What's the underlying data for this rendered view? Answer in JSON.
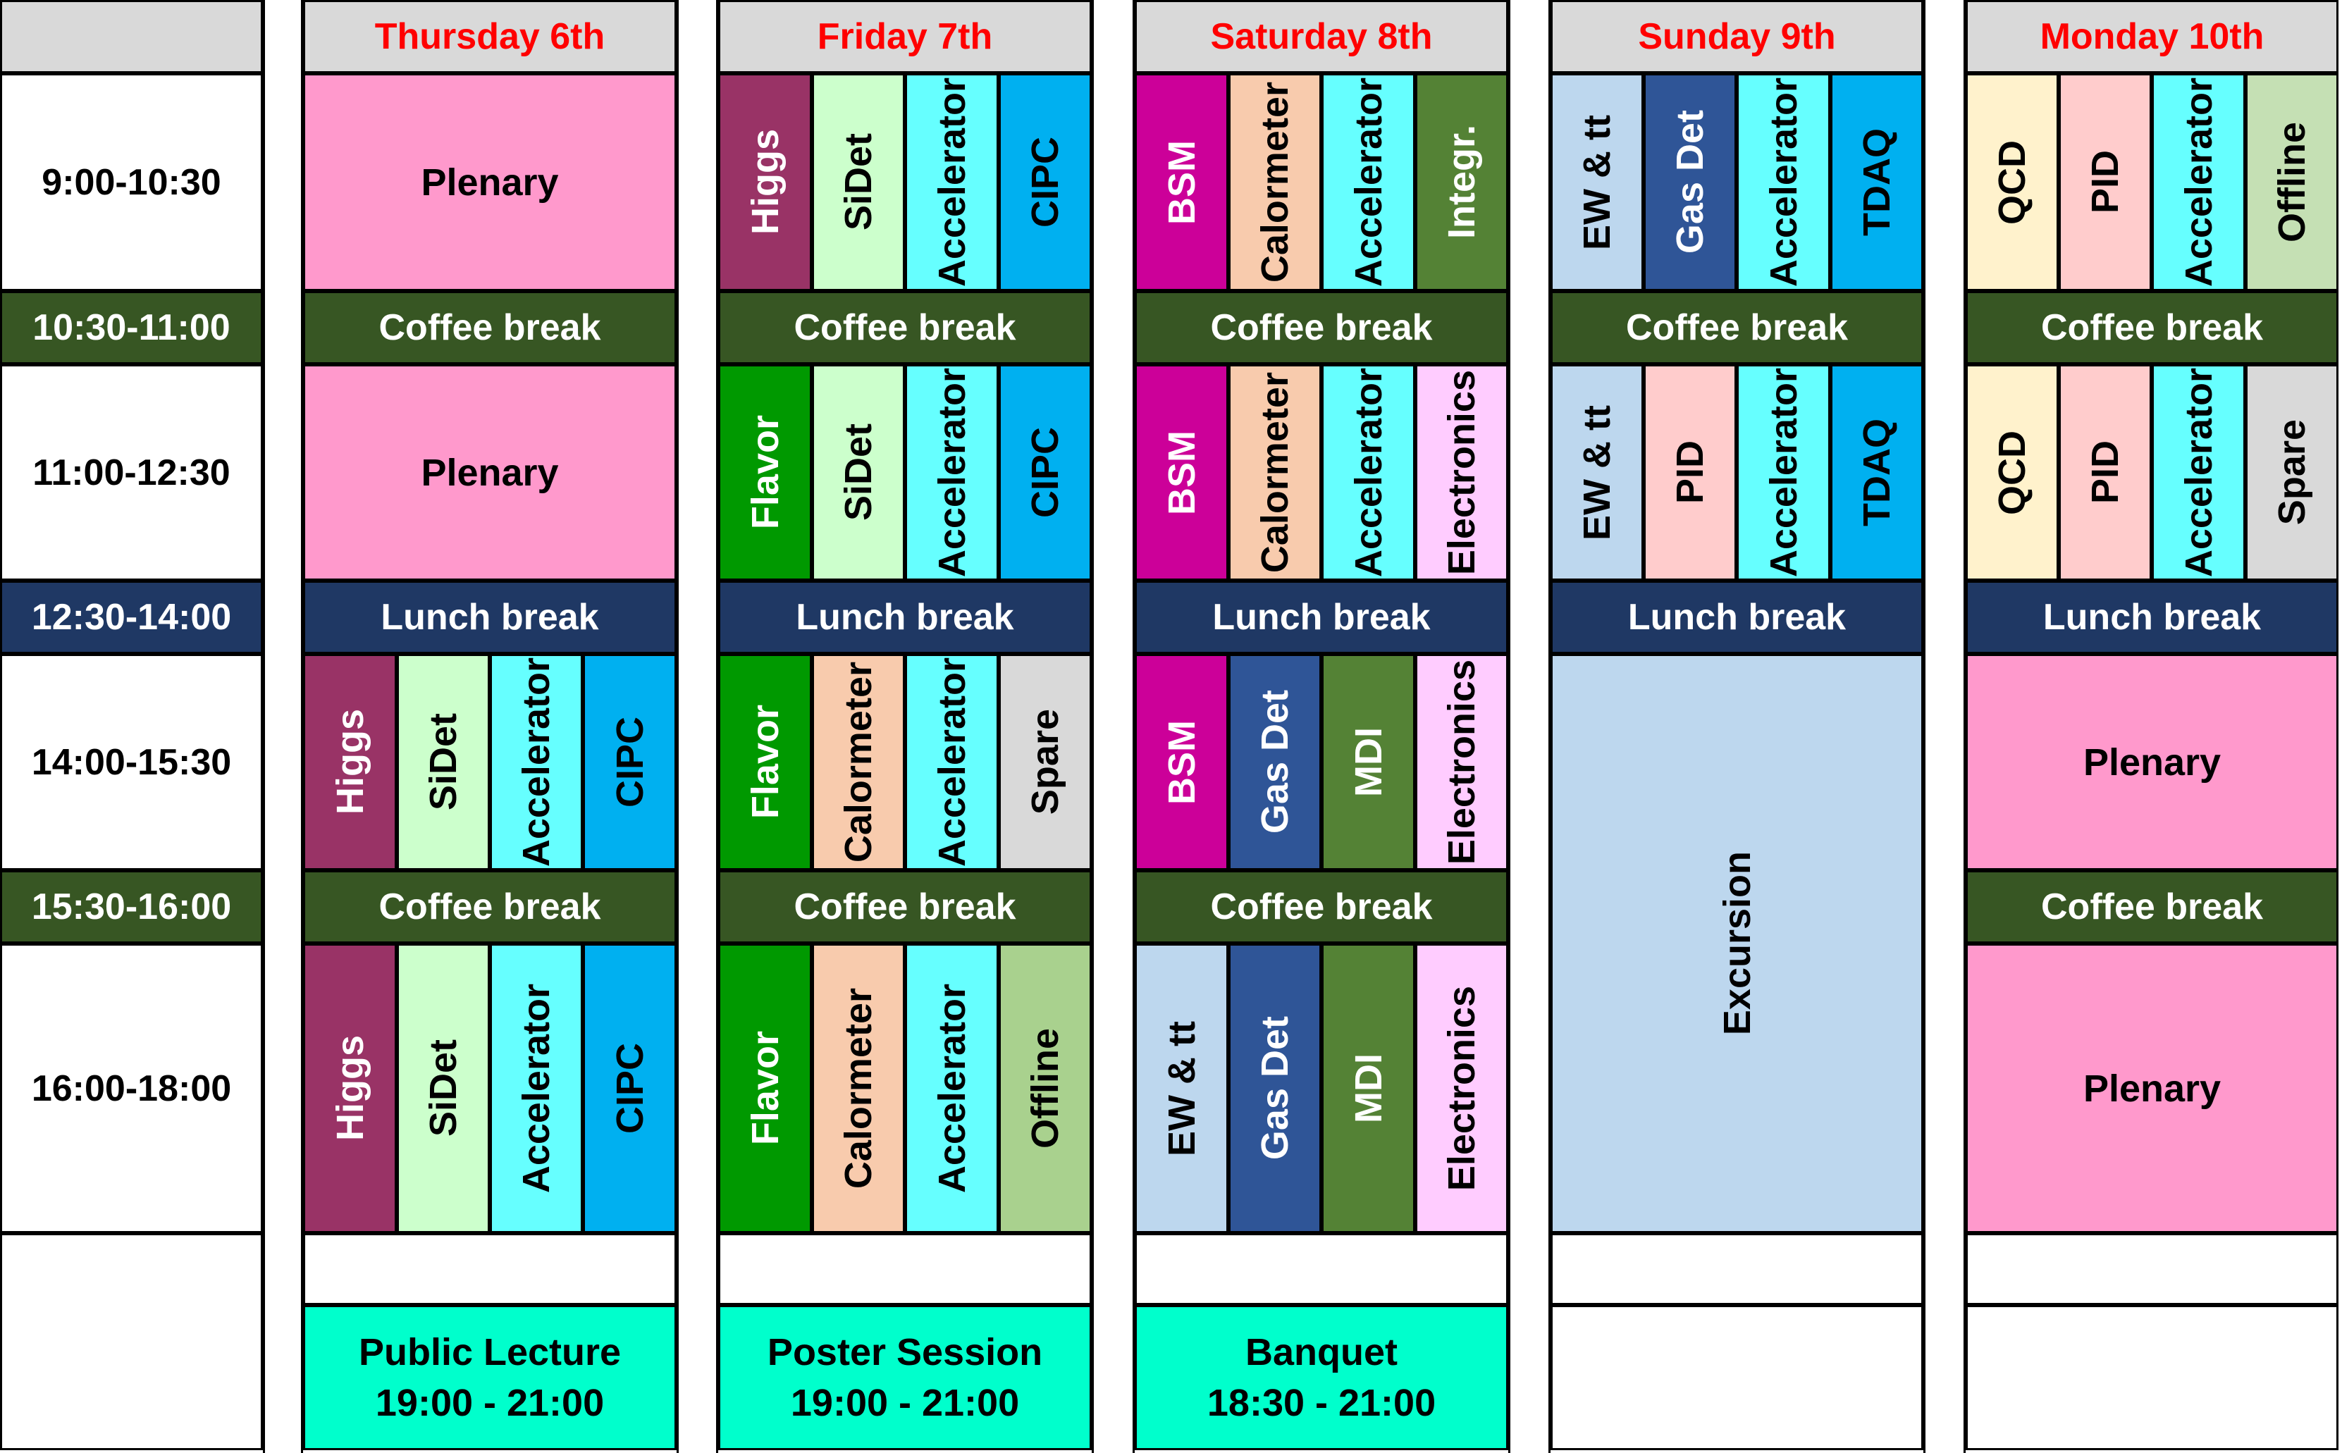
{
  "colors": {
    "header_bg": "#d9d9d9",
    "header_text": "#ff0000",
    "coffee": "#375623",
    "lunch": "#1f3864",
    "evening": "#00ffcc",
    "plenary": "#ff99cc",
    "higgs": "#993366",
    "sidet": "#ccffcc",
    "accelerator": "#66ffff",
    "cipc": "#00b0f0",
    "flavor": "#009900",
    "calorimeter": "#f8cbad",
    "spare": "#d9d9d9",
    "offline": "#a9d18e",
    "bsm": "#cc0099",
    "integr": "#548235",
    "electronics": "#ffccff",
    "gasdet": "#2f5597",
    "mdi": "#548235",
    "ewtt": "#bdd7ee",
    "tdaq": "#00b0f0",
    "qcd": "#fff2cc",
    "pid": "#ffcccc",
    "offline_mon": "#c5e0b4",
    "excursion": "#bdd7ee"
  },
  "times": [
    "9:00-10:30",
    "10:30-11:00",
    "11:00-12:30",
    "12:30-14:00",
    "14:00-15:30",
    "15:30-16:00",
    "16:00-18:00"
  ],
  "days": [
    {
      "name": "Thursday 6th",
      "rows": [
        {
          "full": "Plenary",
          "color": "plenary"
        },
        {
          "break": "Coffee break",
          "color": "coffee"
        },
        {
          "full": "Plenary",
          "color": "plenary"
        },
        {
          "break": "Lunch break",
          "color": "lunch"
        },
        {
          "sessions": [
            {
              "label": "Higgs",
              "color": "higgs",
              "light": true
            },
            {
              "label": "SiDet",
              "color": "sidet"
            },
            {
              "label": "Accelerator",
              "color": "accelerator"
            },
            {
              "label": "CIPC",
              "color": "cipc"
            }
          ]
        },
        {
          "break": "Coffee break",
          "color": "coffee"
        },
        {
          "sessions": [
            {
              "label": "Higgs",
              "color": "higgs",
              "light": true
            },
            {
              "label": "SiDet",
              "color": "sidet"
            },
            {
              "label": "Accelerator",
              "color": "accelerator"
            },
            {
              "label": "CIPC",
              "color": "cipc"
            }
          ]
        }
      ],
      "evening": {
        "title": "Public Lecture",
        "time": "19:00 - 21:00"
      }
    },
    {
      "name": "Friday 7th",
      "rows": [
        {
          "sessions": [
            {
              "label": "Higgs",
              "color": "higgs",
              "light": true
            },
            {
              "label": "SiDet",
              "color": "sidet"
            },
            {
              "label": "Accelerator",
              "color": "accelerator"
            },
            {
              "label": "CIPC",
              "color": "cipc"
            }
          ]
        },
        {
          "break": "Coffee break",
          "color": "coffee"
        },
        {
          "sessions": [
            {
              "label": "Flavor",
              "color": "flavor",
              "light": true
            },
            {
              "label": "SiDet",
              "color": "sidet"
            },
            {
              "label": "Accelerator",
              "color": "accelerator"
            },
            {
              "label": "CIPC",
              "color": "cipc"
            }
          ]
        },
        {
          "break": "Lunch break",
          "color": "lunch"
        },
        {
          "sessions": [
            {
              "label": "Flavor",
              "color": "flavor",
              "light": true
            },
            {
              "label": "Calormeter",
              "color": "calorimeter"
            },
            {
              "label": "Accelerator",
              "color": "accelerator"
            },
            {
              "label": "Spare",
              "color": "spare"
            }
          ]
        },
        {
          "break": "Coffee break",
          "color": "coffee"
        },
        {
          "sessions": [
            {
              "label": "Flavor",
              "color": "flavor",
              "light": true
            },
            {
              "label": "Calormeter",
              "color": "calorimeter"
            },
            {
              "label": "Accelerator",
              "color": "accelerator"
            },
            {
              "label": "Offline",
              "color": "offline"
            }
          ]
        }
      ],
      "evening": {
        "title": "Poster Session",
        "time": "19:00 - 21:00"
      }
    },
    {
      "name": "Saturday 8th",
      "rows": [
        {
          "sessions": [
            {
              "label": "BSM",
              "color": "bsm",
              "light": true
            },
            {
              "label": "Calormeter",
              "color": "calorimeter"
            },
            {
              "label": "Accelerator",
              "color": "accelerator"
            },
            {
              "label": "Integr.",
              "color": "integr",
              "light": true
            }
          ]
        },
        {
          "break": "Coffee break",
          "color": "coffee"
        },
        {
          "sessions": [
            {
              "label": "BSM",
              "color": "bsm",
              "light": true
            },
            {
              "label": "Calormeter",
              "color": "calorimeter"
            },
            {
              "label": "Accelerator",
              "color": "accelerator"
            },
            {
              "label": "Electronics",
              "color": "electronics"
            }
          ]
        },
        {
          "break": "Lunch break",
          "color": "lunch"
        },
        {
          "sessions": [
            {
              "label": "BSM",
              "color": "bsm",
              "light": true
            },
            {
              "label": "Gas Det",
              "color": "gasdet",
              "light": true
            },
            {
              "label": "MDI",
              "color": "mdi",
              "light": true
            },
            {
              "label": "Electronics",
              "color": "electronics"
            }
          ]
        },
        {
          "break": "Coffee break",
          "color": "coffee"
        },
        {
          "sessions": [
            {
              "label": "EW & tt",
              "color": "ewtt"
            },
            {
              "label": "Gas Det",
              "color": "gasdet",
              "light": true
            },
            {
              "label": "MDI",
              "color": "mdi",
              "light": true
            },
            {
              "label": "Electronics",
              "color": "electronics"
            }
          ]
        }
      ],
      "evening": {
        "title": "Banquet",
        "time": "18:30 - 21:00"
      }
    },
    {
      "name": "Sunday 9th",
      "rows": [
        {
          "sessions": [
            {
              "label": "EW & tt",
              "color": "ewtt"
            },
            {
              "label": "Gas Det",
              "color": "gasdet",
              "light": true
            },
            {
              "label": "Accelerator",
              "color": "accelerator"
            },
            {
              "label": "TDAQ",
              "color": "tdaq"
            }
          ]
        },
        {
          "break": "Coffee break",
          "color": "coffee"
        },
        {
          "sessions": [
            {
              "label": "EW & tt",
              "color": "ewtt"
            },
            {
              "label": "PID",
              "color": "pid"
            },
            {
              "label": "Accelerator",
              "color": "accelerator"
            },
            {
              "label": "TDAQ",
              "color": "tdaq"
            }
          ]
        },
        {
          "break": "Lunch break",
          "color": "lunch"
        },
        {
          "span": "Excursion",
          "color": "excursion",
          "rows": 3
        }
      ],
      "evening": null
    },
    {
      "name": "Monday 10th",
      "rows": [
        {
          "sessions": [
            {
              "label": "QCD",
              "color": "qcd"
            },
            {
              "label": "PID",
              "color": "pid"
            },
            {
              "label": "Accelerator",
              "color": "accelerator"
            },
            {
              "label": "Offline",
              "color": "offline_mon"
            }
          ]
        },
        {
          "break": "Coffee break",
          "color": "coffee"
        },
        {
          "sessions": [
            {
              "label": "QCD",
              "color": "qcd"
            },
            {
              "label": "PID",
              "color": "pid"
            },
            {
              "label": "Accelerator",
              "color": "accelerator"
            },
            {
              "label": "Spare",
              "color": "spare"
            }
          ]
        },
        {
          "break": "Lunch break",
          "color": "lunch"
        },
        {
          "full": "Plenary",
          "color": "plenary"
        },
        {
          "break": "Coffee break",
          "color": "coffee"
        },
        {
          "full": "Plenary",
          "color": "plenary"
        }
      ],
      "evening": null
    }
  ]
}
